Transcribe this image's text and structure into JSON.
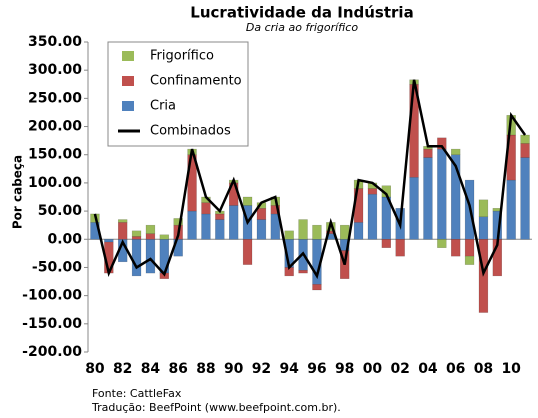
{
  "chart_data": {
    "type": "bar",
    "stacked": true,
    "title": "Lucratividade da Indústria",
    "subtitle": "Da cria ao frigorífico",
    "y_label": "Por cabeça",
    "notes": [
      "Fonte: CattleFax",
      "Tradução: BeefPoint (www.beefpoint.com.br)."
    ],
    "categories": [
      "80",
      null,
      "82",
      null,
      "84",
      null,
      "86",
      null,
      "88",
      null,
      "90",
      null,
      "92",
      null,
      "94",
      null,
      "96",
      null,
      "98",
      null,
      "00",
      null,
      "02",
      null,
      "04",
      null,
      "06",
      null,
      "08",
      null,
      "10",
      null
    ],
    "series": [
      {
        "name": "Frigorífico",
        "color": "#9bbb59",
        "values": [
          15,
          0,
          5,
          10,
          15,
          8,
          12,
          10,
          10,
          5,
          5,
          15,
          10,
          15,
          15,
          35,
          25,
          15,
          25,
          15,
          10,
          20,
          0,
          8,
          5,
          -15,
          10,
          -15,
          30,
          5,
          35,
          15
        ]
      },
      {
        "name": "Confinamento",
        "color": "#c0504d",
        "values": [
          0,
          -55,
          30,
          5,
          10,
          -10,
          25,
          100,
          20,
          10,
          40,
          -45,
          20,
          15,
          -15,
          -5,
          -10,
          5,
          -50,
          60,
          10,
          -15,
          -30,
          165,
          15,
          20,
          -30,
          -30,
          -130,
          -65,
          80,
          25
        ]
      },
      {
        "name": "Cria",
        "color": "#4f81bd",
        "values": [
          30,
          -5,
          -40,
          -65,
          -60,
          -60,
          -30,
          50,
          45,
          35,
          60,
          60,
          35,
          45,
          -50,
          -55,
          -80,
          10,
          -20,
          30,
          80,
          75,
          55,
          110,
          145,
          160,
          150,
          105,
          40,
          50,
          105,
          145
        ]
      },
      {
        "name": "Combinados",
        "type": "line",
        "color": "#000000",
        "values": [
          45,
          -60,
          -5,
          -50,
          -35,
          -62,
          7,
          160,
          75,
          50,
          105,
          30,
          65,
          75,
          -50,
          -25,
          -65,
          30,
          -45,
          105,
          100,
          80,
          25,
          283,
          165,
          165,
          130,
          60,
          -60,
          -10,
          220,
          185
        ]
      }
    ],
    "ylim": [
      -200,
      350
    ],
    "yticks": [
      {
        "value": -200,
        "label": "-200.00"
      },
      {
        "value": -150,
        "label": "-150.00"
      },
      {
        "value": -100,
        "label": "-100.00"
      },
      {
        "value": -50,
        "label": "-50.00"
      },
      {
        "value": 0,
        "label": "0.00"
      },
      {
        "value": 50,
        "label": "50.00"
      },
      {
        "value": 100,
        "label": "100.00"
      },
      {
        "value": 150,
        "label": "150.00"
      },
      {
        "value": 200,
        "label": "200.00"
      },
      {
        "value": 250,
        "label": "250.00"
      },
      {
        "value": 300,
        "label": "300.00"
      },
      {
        "value": 350,
        "label": "350.00"
      }
    ],
    "legend": "upper left"
  }
}
